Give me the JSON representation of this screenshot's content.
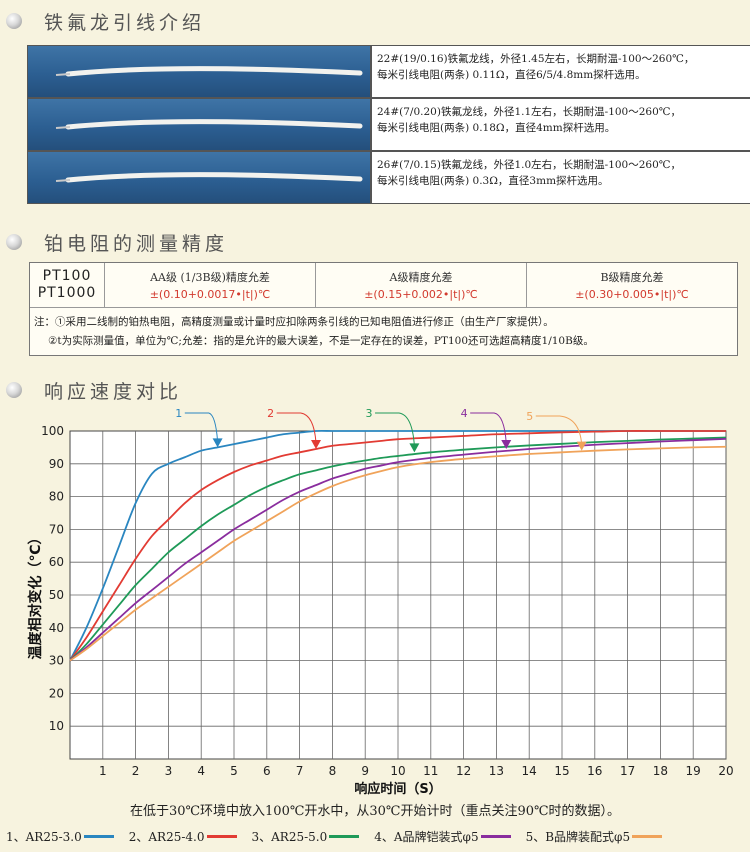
{
  "sections": {
    "wires_title": "铁氟龙引线介绍",
    "precision_title": "铂电阻的测量精度",
    "response_title": "响应速度对比"
  },
  "wires": [
    {
      "line1": "22#(19/0.16)铁氟龙线，外径1.45左右，长期耐温-100～260℃，",
      "line2": "每米引线电阻(两条) 0.11Ω，直径6/5/4.8mm探杆选用。"
    },
    {
      "line1": "24#(7/0.20)铁氟龙线，外径1.1左右，长期耐温-100～260℃，",
      "line2": "每米引线电阻(两条) 0.18Ω，直径4mm探杆选用。"
    },
    {
      "line1": "26#(7/0.15)铁氟龙线，外径1.0左右，长期耐温-100～260℃，",
      "line2": "每米引线电阻(两条) 0.3Ω，直径3mm探杆选用。"
    }
  ],
  "pt_table": {
    "name_line1": "PT100",
    "name_line2": "PT1000",
    "grades": [
      {
        "label": "AA级 (1/3B级)精度允差",
        "formula": "±(0.10+0.0017•|t|)℃"
      },
      {
        "label": "A级精度允差",
        "formula": "±(0.15+0.002•|t|)℃"
      },
      {
        "label": "B级精度允差",
        "formula": "±(0.30+0.005•|t|)℃"
      }
    ],
    "note1": "注：①采用二线制的铂热电阻，高精度测量或计量时应扣除两条引线的已知电阻值进行修正（由生产厂家提供）。",
    "note2": "②t为实际测量值，单位为℃;允差：指的是允许的最大误差，不是一定存在的误差，PT100还可选超高精度1/10B级。"
  },
  "chart_data": {
    "type": "line",
    "xlabel": "响应时间（S）",
    "ylabel": "温度相对变化（℃）",
    "xlim": [
      0,
      20
    ],
    "ylim": [
      0,
      100
    ],
    "x_ticks": [
      "1",
      "2",
      "3",
      "4",
      "5",
      "6",
      "7",
      "8",
      "9",
      "10",
      "11",
      "12",
      "13",
      "14",
      "15",
      "16",
      "17",
      "18",
      "19",
      "20"
    ],
    "y_ticks": [
      "10",
      "20",
      "30",
      "40",
      "50",
      "60",
      "70",
      "80",
      "90",
      "100"
    ],
    "grid": true,
    "x": [
      0,
      0.5,
      1,
      1.5,
      2,
      2.5,
      3,
      3.5,
      4,
      4.5,
      5,
      5.5,
      6,
      6.5,
      7,
      7.5,
      8,
      8.5,
      9,
      9.5,
      10,
      11,
      12,
      13,
      14,
      15,
      16,
      17,
      18,
      19,
      20
    ],
    "series": [
      {
        "name": "1",
        "color": "#2a86c0",
        "values": [
          30,
          40,
          52,
          65,
          78,
          87,
          90,
          92,
          94,
          95,
          96,
          97,
          98,
          99,
          99.5,
          100,
          100,
          100,
          100,
          100,
          100,
          100,
          100,
          100,
          100,
          100,
          100,
          100,
          100,
          100,
          100
        ]
      },
      {
        "name": "2",
        "color": "#e23b33",
        "values": [
          30,
          37,
          45,
          53,
          61,
          68,
          73,
          78,
          82,
          85,
          87.5,
          89.5,
          91,
          92.5,
          93.5,
          94.5,
          95.5,
          96,
          96.5,
          97,
          97.5,
          98,
          98.5,
          99,
          99.3,
          99.6,
          99.8,
          100,
          100,
          100,
          100
        ]
      },
      {
        "name": "3",
        "color": "#1f9a58",
        "values": [
          30,
          35,
          41,
          47,
          53,
          58,
          63,
          67,
          71,
          74.5,
          77.5,
          80.5,
          83,
          85,
          86.8,
          88,
          89.2,
          90.2,
          91,
          91.8,
          92.4,
          93.5,
          94.3,
          95,
          95.6,
          96.1,
          96.6,
          97,
          97.4,
          97.7,
          98
        ]
      },
      {
        "name": "4",
        "color": "#8a2d9e",
        "values": [
          30,
          34,
          38.5,
          43,
          47.5,
          51.5,
          55.5,
          59.5,
          63,
          66.5,
          70,
          73,
          76,
          79,
          81.5,
          83.5,
          85.5,
          87,
          88.5,
          89.5,
          90.5,
          91.8,
          92.8,
          93.7,
          94.5,
          95.2,
          95.8,
          96.3,
          96.8,
          97.2,
          97.6
        ]
      },
      {
        "name": "5",
        "color": "#f0a35a",
        "values": [
          30,
          33.5,
          37.5,
          41.5,
          45.5,
          49,
          52.5,
          56,
          59.5,
          63,
          66.5,
          69.5,
          72.5,
          75.5,
          78.5,
          81,
          83.2,
          85,
          86.5,
          87.8,
          89,
          90.5,
          91.5,
          92.3,
          93,
          93.5,
          94,
          94.4,
          94.7,
          95,
          95.2
        ]
      }
    ],
    "markers": [
      "1",
      "2",
      "3",
      "4",
      "5"
    ]
  },
  "caption": "在低于30℃环境中放入100℃开水中，从30℃开始计时（重点关注90℃时的数据）。",
  "legend": [
    {
      "label": "1、AR25-3.0",
      "color": "#2a86c0"
    },
    {
      "label": "2、AR25-4.0",
      "color": "#e23b33"
    },
    {
      "label": "3、AR25-5.0",
      "color": "#1f9a58"
    },
    {
      "label": "4、A品牌铠装式φ5",
      "color": "#8a2d9e"
    },
    {
      "label": "5、B品牌装配式φ5",
      "color": "#f0a35a"
    }
  ]
}
